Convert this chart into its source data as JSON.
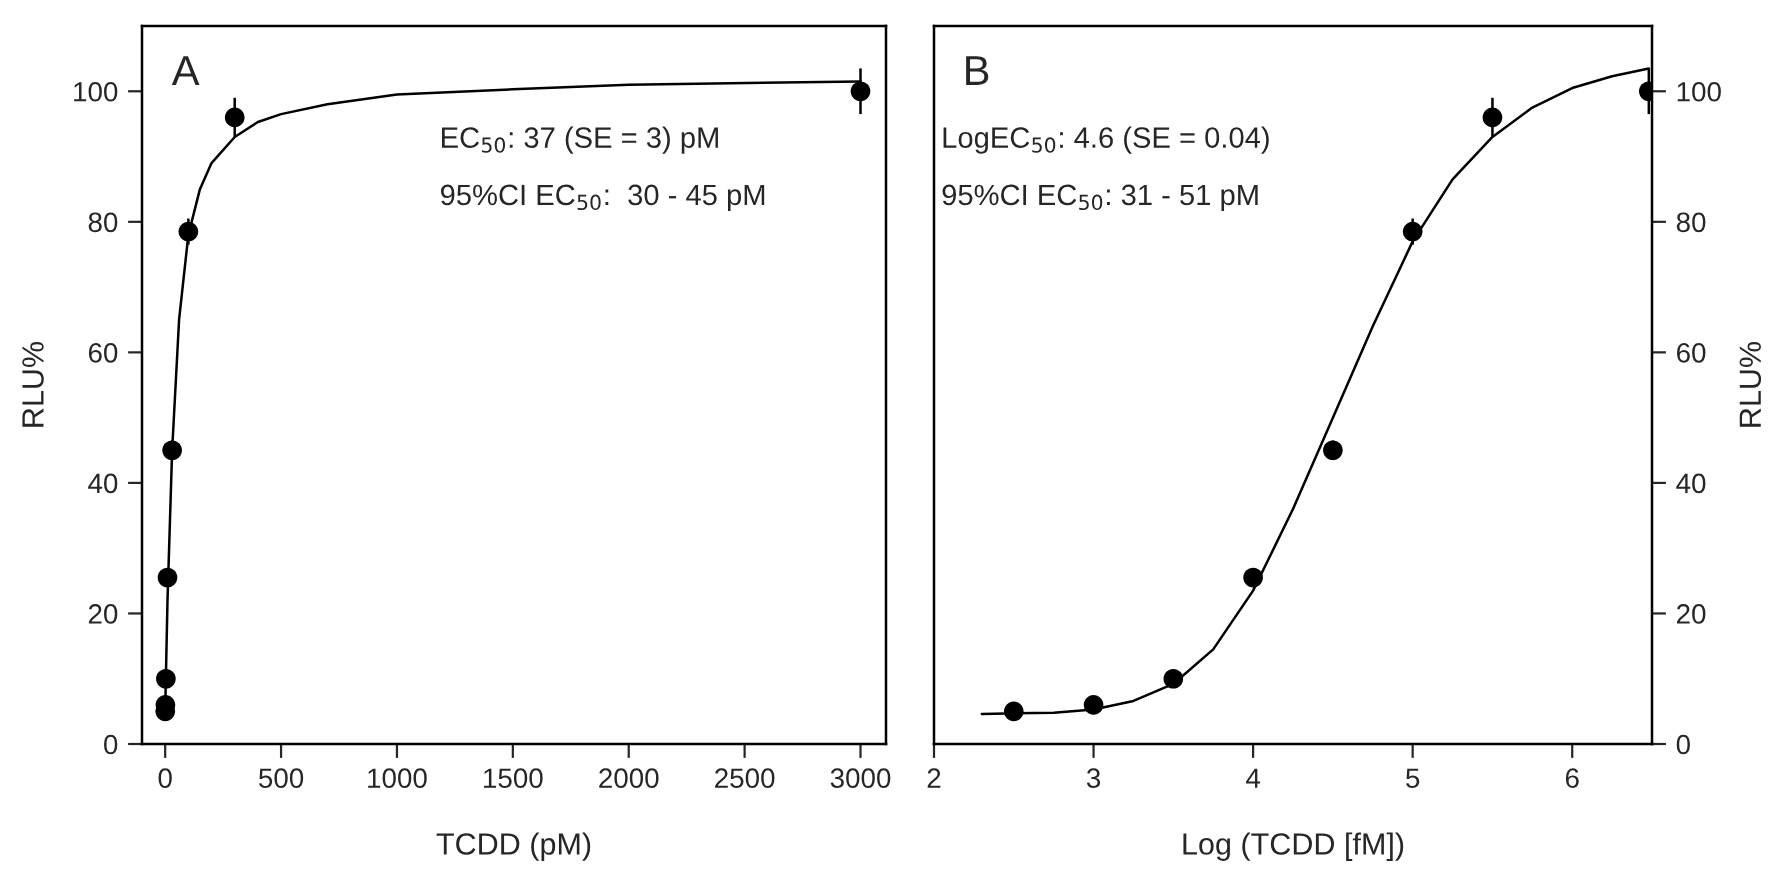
{
  "chart_data": [
    {
      "type": "scatter",
      "xlabel": "TCDD (pM)",
      "ylabel": "RLU%",
      "xlim": [
        -100,
        3110
      ],
      "ylim": [
        0,
        110
      ],
      "xticks": [
        0,
        500,
        1000,
        1500,
        2000,
        2500,
        3000
      ],
      "yticks": [
        0,
        20,
        40,
        60,
        80,
        100
      ],
      "grid": false,
      "legend": false,
      "marker": "circle",
      "annotations": [
        "A",
        "EC$_{50}$: 37 (SE = 3) pM",
        "95%CI EC$_{50}$:  30 - 45 pM"
      ],
      "series": [
        {
          "color": "#000000",
          "x": [
            0.3,
            1,
            3,
            10,
            30,
            100,
            300,
            3000
          ],
          "values": [
            5,
            6,
            10,
            25.5,
            45,
            78.5,
            96,
            100
          ],
          "errors": [
            null,
            null,
            1,
            1,
            1.5,
            2,
            3,
            3.5
          ]
        },
        {
          "type": "line",
          "color": "#000000",
          "marker": "none",
          "line_style": "solid",
          "x": [
            0,
            10,
            30,
            60,
            100,
            150,
            200,
            300,
            400,
            500,
            700,
            1000,
            1500,
            2000,
            3000
          ],
          "values": [
            5,
            22,
            45,
            65,
            78,
            85,
            89,
            93,
            95.3,
            96.5,
            98,
            99.5,
            100.3,
            101,
            101.5
          ]
        }
      ]
    },
    {
      "type": "scatter",
      "xlabel": "Log (TCDD [fM])",
      "y2label": "RLU%",
      "xlim": [
        2,
        6.5
      ],
      "y2lim": [
        0,
        110
      ],
      "xticks": [
        2,
        3,
        4,
        5,
        6
      ],
      "y2ticks": [
        0,
        20,
        40,
        60,
        80,
        100
      ],
      "grid": false,
      "legend": false,
      "marker": "circle",
      "annotations": [
        "B",
        "LogEC$_{50}$: 4.6 (SE = 0.04)",
        "95%CI EC$_{50}$: 31 - 51 pM"
      ],
      "series": [
        {
          "axis": "y2",
          "color": "#000000",
          "x": [
            2.5,
            3,
            3.5,
            4,
            4.5,
            5,
            5.5,
            6.48
          ],
          "values": [
            5,
            6,
            10,
            25.5,
            45,
            78.5,
            96,
            100
          ],
          "errors": [
            null,
            null,
            1,
            1,
            1.5,
            2,
            3,
            3.5
          ]
        },
        {
          "type": "line",
          "axis": "y2",
          "color": "#000000",
          "marker": "none",
          "line_style": "solid",
          "x": [
            2.3,
            2.75,
            3.0,
            3.25,
            3.5,
            3.75,
            4.0,
            4.25,
            4.5,
            4.75,
            5.0,
            5.25,
            5.5,
            5.75,
            6.0,
            6.25,
            6.48
          ],
          "values": [
            4.6,
            4.8,
            5.3,
            6.6,
            9.2,
            14.5,
            23.5,
            36,
            50,
            64,
            77,
            86.5,
            93,
            97.5,
            100.5,
            102.3,
            103.5
          ]
        }
      ]
    }
  ]
}
